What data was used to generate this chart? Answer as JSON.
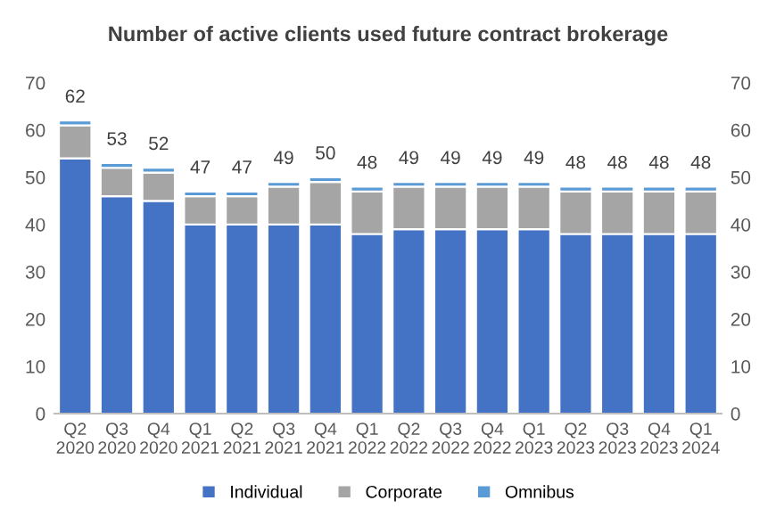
{
  "chart_data": {
    "type": "bar",
    "title": "Number of active clients used future contract brokerage",
    "stacked": true,
    "categories": [
      "Q2\n2020",
      "Q3\n2020",
      "Q4\n2020",
      "Q1\n2021",
      "Q2\n2021",
      "Q3\n2021",
      "Q4\n2021",
      "Q1\n2022",
      "Q2\n2022",
      "Q3\n2022",
      "Q4\n2022",
      "Q1\n2023",
      "Q2\n2023",
      "Q3\n2023",
      "Q4\n2023",
      "Q1\n2024"
    ],
    "series": [
      {
        "name": "Individual",
        "color": "#4472c4",
        "values": [
          54,
          46,
          45,
          40,
          40,
          40,
          40,
          38,
          39,
          39,
          39,
          39,
          38,
          38,
          38,
          38
        ]
      },
      {
        "name": "Corporate",
        "color": "#a5a5a5",
        "values": [
          7,
          6,
          6,
          6,
          6,
          8,
          9,
          9,
          9,
          9,
          9,
          9,
          9,
          9,
          9,
          9
        ]
      },
      {
        "name": "Omnibus",
        "color": "#5b9bd5",
        "values": [
          1,
          1,
          1,
          1,
          1,
          1,
          1,
          1,
          1,
          1,
          1,
          1,
          1,
          1,
          1,
          1
        ]
      }
    ],
    "totals": [
      "62",
      "53",
      "52",
      "47",
      "47",
      "49",
      "50",
      "48",
      "49",
      "49",
      "49",
      "49",
      "48",
      "48",
      "48",
      "48"
    ],
    "ylim": [
      0,
      70
    ],
    "yticks": [
      0,
      10,
      20,
      30,
      40,
      50,
      60,
      70
    ],
    "y2lim": [
      0,
      70
    ],
    "y2ticks": [
      0,
      10,
      20,
      30,
      40,
      50,
      60,
      70
    ],
    "grid": false,
    "legend": "bottom"
  }
}
